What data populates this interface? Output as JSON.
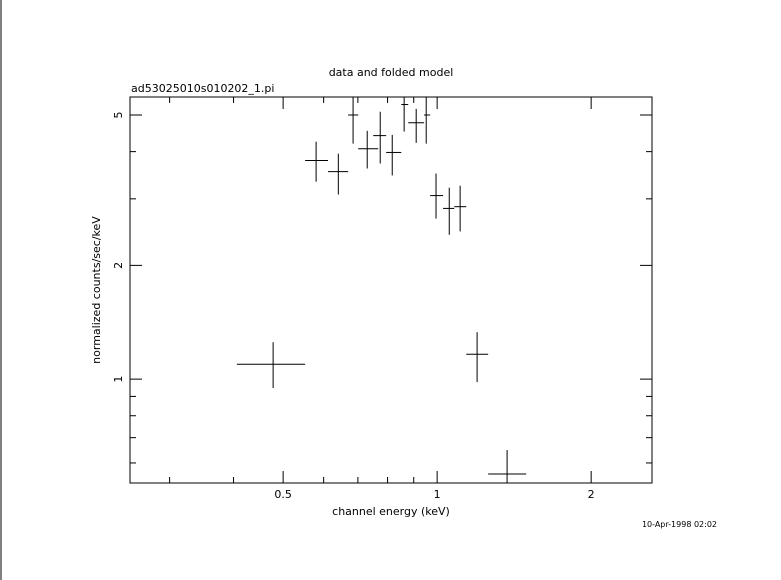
{
  "chart_data": {
    "type": "errorbar",
    "title": "data and folded model",
    "subtitle": "ad53025010s010202_1.pi",
    "xlabel": "channel energy (keV)",
    "ylabel": "normalized counts/sec/keV",
    "timestamp": "10-Apr-1998 02:02",
    "xscale": "log",
    "yscale": "log",
    "xlim": [
      0.251,
      2.63
    ],
    "ylim": [
      0.531,
      5.58
    ],
    "xticks": [
      0.5,
      1,
      2
    ],
    "yticks": [
      1,
      2,
      5
    ],
    "xminor": [
      0.3,
      0.4,
      0.6,
      0.7,
      0.8,
      0.9
    ],
    "yminor": [
      0.6,
      0.7,
      0.8,
      0.9,
      3,
      4
    ],
    "color": "#000000",
    "x": [
      0.478,
      0.58,
      0.641,
      0.685,
      0.73,
      0.774,
      0.817,
      0.862,
      0.91,
      0.952,
      0.995,
      1.056,
      1.109,
      1.197,
      1.37
    ],
    "x_low": [
      0.406,
      0.552,
      0.612,
      0.67,
      0.701,
      0.75,
      0.795,
      0.851,
      0.878,
      0.943,
      0.969,
      1.027,
      1.08,
      1.14,
      1.258
    ],
    "x_high": [
      0.552,
      0.612,
      0.67,
      0.701,
      0.767,
      0.795,
      0.851,
      0.878,
      0.943,
      0.969,
      1.027,
      1.08,
      1.14,
      1.258,
      1.493
    ],
    "values": [
      1.095,
      3.79,
      3.54,
      5.0,
      4.07,
      4.41,
      3.98,
      5.33,
      4.77,
      5.0,
      3.06,
      2.83,
      2.86,
      1.164,
      0.561
    ],
    "y_low": [
      0.947,
      3.33,
      3.08,
      4.2,
      3.61,
      3.72,
      3.46,
      4.52,
      4.22,
      4.2,
      2.66,
      2.41,
      2.46,
      0.982,
      0.531
    ],
    "y_high": [
      1.252,
      4.25,
      3.95,
      5.58,
      4.54,
      5.1,
      4.43,
      5.58,
      5.19,
      5.58,
      3.5,
      3.21,
      3.25,
      1.331,
      0.649
    ]
  }
}
